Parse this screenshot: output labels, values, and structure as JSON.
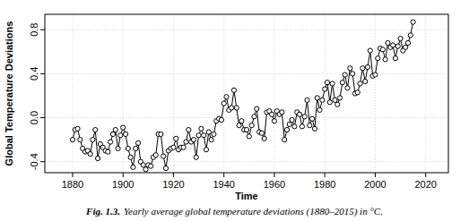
{
  "chart_data": {
    "type": "line",
    "marker": "circle",
    "line_style": "solid",
    "grid": true,
    "color": "#000000",
    "x_label": "Time",
    "y_label": "Global Temperature Deviations",
    "caption_label": "Fig. 1.3.",
    "caption": "Yearly average global temperature deviations (1880–2015) in °C.",
    "x": [
      1880,
      1881,
      1882,
      1883,
      1884,
      1885,
      1886,
      1887,
      1888,
      1889,
      1890,
      1891,
      1892,
      1893,
      1894,
      1895,
      1896,
      1897,
      1898,
      1899,
      1900,
      1901,
      1902,
      1903,
      1904,
      1905,
      1906,
      1907,
      1908,
      1909,
      1910,
      1911,
      1912,
      1913,
      1914,
      1915,
      1916,
      1917,
      1918,
      1919,
      1920,
      1921,
      1922,
      1923,
      1924,
      1925,
      1926,
      1927,
      1928,
      1929,
      1930,
      1931,
      1932,
      1933,
      1934,
      1935,
      1936,
      1937,
      1938,
      1939,
      1940,
      1941,
      1942,
      1943,
      1944,
      1945,
      1946,
      1947,
      1948,
      1949,
      1950,
      1951,
      1952,
      1953,
      1954,
      1955,
      1956,
      1957,
      1958,
      1959,
      1960,
      1961,
      1962,
      1963,
      1964,
      1965,
      1966,
      1967,
      1968,
      1969,
      1970,
      1971,
      1972,
      1973,
      1974,
      1975,
      1976,
      1977,
      1978,
      1979,
      1980,
      1981,
      1982,
      1983,
      1984,
      1985,
      1986,
      1987,
      1988,
      1989,
      1990,
      1991,
      1992,
      1993,
      1994,
      1995,
      1996,
      1997,
      1998,
      1999,
      2000,
      2001,
      2002,
      2003,
      2004,
      2005,
      2006,
      2007,
      2008,
      2009,
      2010,
      2011,
      2012,
      2013,
      2014,
      2015
    ],
    "values": [
      -0.2,
      -0.11,
      -0.1,
      -0.2,
      -0.28,
      -0.31,
      -0.3,
      -0.33,
      -0.2,
      -0.11,
      -0.37,
      -0.24,
      -0.27,
      -0.3,
      -0.31,
      -0.22,
      -0.15,
      -0.11,
      -0.28,
      -0.16,
      -0.09,
      -0.15,
      -0.28,
      -0.36,
      -0.45,
      -0.28,
      -0.23,
      -0.4,
      -0.43,
      -0.47,
      -0.43,
      -0.44,
      -0.36,
      -0.34,
      -0.15,
      -0.15,
      -0.35,
      -0.46,
      -0.3,
      -0.28,
      -0.27,
      -0.19,
      -0.29,
      -0.27,
      -0.27,
      -0.22,
      -0.11,
      -0.22,
      -0.2,
      -0.36,
      -0.16,
      -0.1,
      -0.16,
      -0.29,
      -0.13,
      -0.2,
      -0.15,
      -0.03,
      -0.01,
      -0.02,
      0.13,
      0.19,
      0.07,
      0.09,
      0.25,
      0.09,
      -0.07,
      -0.03,
      -0.11,
      -0.11,
      -0.17,
      -0.07,
      0.01,
      0.08,
      -0.13,
      -0.14,
      -0.19,
      0.05,
      0.06,
      0.03,
      -0.03,
      0.06,
      0.03,
      0.05,
      -0.2,
      -0.11,
      -0.06,
      -0.02,
      -0.08,
      0.05,
      0.03,
      -0.08,
      0.01,
      0.16,
      -0.07,
      -0.01,
      -0.1,
      0.18,
      0.07,
      0.16,
      0.26,
      0.32,
      0.14,
      0.31,
      0.16,
      0.12,
      0.18,
      0.32,
      0.39,
      0.27,
      0.45,
      0.4,
      0.22,
      0.23,
      0.31,
      0.45,
      0.33,
      0.46,
      0.61,
      0.38,
      0.39,
      0.54,
      0.63,
      0.62,
      0.53,
      0.68,
      0.64,
      0.66,
      0.54,
      0.65,
      0.72,
      0.61,
      0.64,
      0.68,
      0.75,
      0.87
    ],
    "xlim": [
      1869,
      2029
    ],
    "xticks": [
      1880,
      1900,
      1920,
      1940,
      1960,
      1980,
      2000,
      2020
    ],
    "ylim": [
      -0.5,
      0.94
    ],
    "yticks": [
      -0.4,
      {
        "value": 0,
        "label": "0.0"
      },
      0.4,
      0.8
    ]
  }
}
